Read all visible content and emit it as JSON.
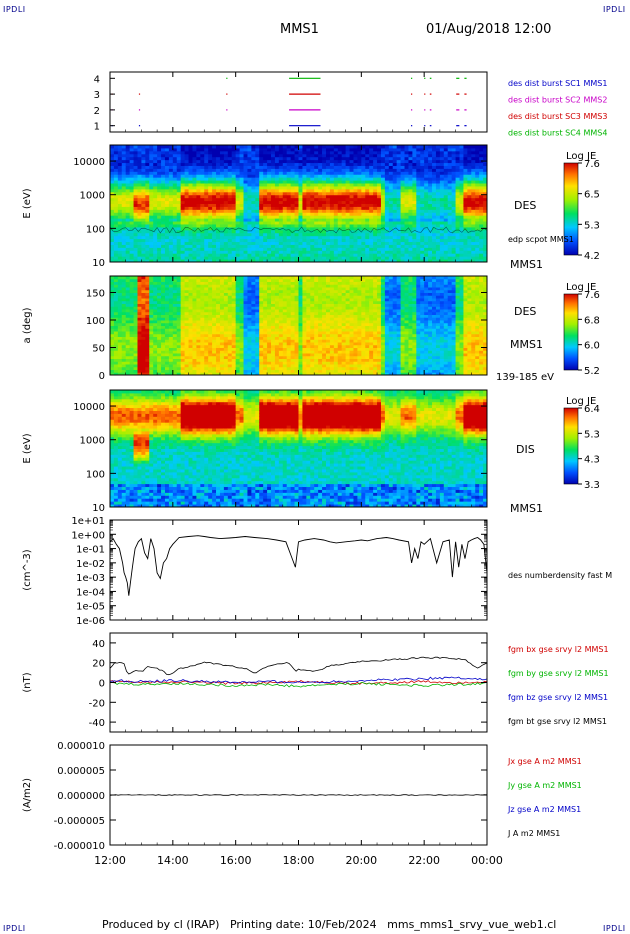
{
  "header": {
    "corner_tl": "IPDLI",
    "corner_tr": "IPDLI",
    "corner_bl": "IPDLI",
    "corner_br": "IPDLI",
    "spacecraft": "MMS1",
    "datetime": "01/Aug/2018 12:00"
  },
  "footer": {
    "text": "Produced by cl (IRAP)   Printing date: 10/Feb/2024   mms_mms1_srvy_vue_web1.cl"
  },
  "colors": {
    "blue": "#0000c8",
    "magenta": "#c800c8",
    "red": "#d00000",
    "green": "#00b400",
    "black": "#000000",
    "frame": "#000000"
  },
  "chart_data": [
    {
      "type": "line",
      "title": "",
      "ylabel": "",
      "yticks": [
        "1",
        "2",
        "3",
        "4"
      ],
      "ylim": [
        0.6,
        4.4
      ],
      "legend": [
        {
          "name": "des dist burst SC1 MMS1",
          "color": "#0000c8"
        },
        {
          "name": "des dist burst SC2 MMS2",
          "color": "#c800c8"
        },
        {
          "name": "des dist burst SC3 MMS3",
          "color": "#d00000"
        },
        {
          "name": "des dist burst SC4 MMS4",
          "color": "#00b400"
        }
      ],
      "series": [
        {
          "name": "des dist burst SC1 MMS1",
          "y": 1,
          "intervals": [
            [
              0.05,
              0.07
            ],
            [
              0.92,
              0.95
            ],
            [
              5.7,
              6.7
            ],
            [
              9.58,
              9.62
            ],
            [
              10.0,
              10.03
            ],
            [
              10.18,
              10.23
            ],
            [
              11.02,
              11.12
            ],
            [
              11.28,
              11.35
            ]
          ]
        },
        {
          "name": "des dist burst SC2 MMS2",
          "y": 2,
          "intervals": [
            [
              0.05,
              0.07
            ],
            [
              0.92,
              0.95
            ],
            [
              3.7,
              3.73
            ],
            [
              5.7,
              6.7
            ],
            [
              9.58,
              9.62
            ],
            [
              10.0,
              10.03
            ],
            [
              10.18,
              10.23
            ],
            [
              11.02,
              11.12
            ],
            [
              11.28,
              11.35
            ]
          ]
        },
        {
          "name": "des dist burst SC3 MMS3",
          "y": 3,
          "intervals": [
            [
              0.05,
              0.07
            ],
            [
              0.92,
              0.95
            ],
            [
              3.7,
              3.73
            ],
            [
              5.7,
              6.7
            ],
            [
              9.58,
              9.62
            ],
            [
              10.0,
              10.03
            ],
            [
              10.18,
              10.23
            ],
            [
              11.02,
              11.12
            ],
            [
              11.28,
              11.35
            ]
          ]
        },
        {
          "name": "des dist burst SC4 MMS4",
          "y": 4,
          "intervals": [
            [
              3.7,
              3.73
            ],
            [
              5.7,
              6.7
            ],
            [
              9.58,
              9.62
            ],
            [
              10.0,
              10.03
            ],
            [
              10.18,
              10.23
            ],
            [
              11.02,
              11.12
            ],
            [
              11.28,
              11.35
            ]
          ]
        }
      ]
    },
    {
      "type": "heatmap",
      "ylabel": "E (eV)",
      "yscale": "log",
      "ylim": [
        10,
        30000
      ],
      "yticks": [
        "10",
        "100",
        "1000",
        "10000"
      ],
      "colorbar": {
        "label": "Log JE",
        "ticks": [
          "7.6",
          "6.5",
          "5.3",
          "4.2"
        ],
        "min": 4.2,
        "max": 7.6
      },
      "right_labels": [
        "DES",
        "edp scpot MMS1",
        "MMS1"
      ]
    },
    {
      "type": "heatmap",
      "ylabel": "a (deg)",
      "ylim": [
        0,
        180
      ],
      "yticks": [
        "0",
        "50",
        "100",
        "150"
      ],
      "colorbar": {
        "label": "Log JE",
        "ticks": [
          "7.6",
          "6.8",
          "6.0",
          "5.2"
        ],
        "min": 5.2,
        "max": 7.6
      },
      "right_labels": [
        "DES",
        "MMS1",
        "139-185 eV"
      ]
    },
    {
      "type": "heatmap",
      "ylabel": "E (eV)",
      "yscale": "log",
      "ylim": [
        10,
        30000
      ],
      "yticks": [
        "10",
        "100",
        "1000",
        "10000"
      ],
      "colorbar": {
        "label": "Log JE",
        "ticks": [
          "6.4",
          "5.3",
          "4.3",
          "3.3"
        ],
        "min": 3.3,
        "max": 6.4
      },
      "right_labels": [
        "DIS",
        "MMS1"
      ]
    },
    {
      "type": "line",
      "ylabel": "(cm^-3)",
      "yscale": "log",
      "ylim": [
        1e-06,
        10
      ],
      "yticks": [
        "1e-06",
        "1e-05",
        "1e-04",
        "1e-03",
        "1e-02",
        "1e-01",
        "1e+00",
        "1e+01"
      ],
      "legend": [
        {
          "name": "des numberdensity fast M",
          "color": "#000000"
        }
      ],
      "series": [
        {
          "name": "des numberdensity fast M",
          "x": [
            0.0,
            0.1,
            0.2,
            0.3,
            0.4,
            0.45,
            0.5,
            0.55,
            0.6,
            0.65,
            0.7,
            0.75,
            0.8,
            0.9,
            1.0,
            1.1,
            1.2,
            1.3,
            1.4,
            1.5,
            1.6,
            1.7,
            1.8,
            1.9,
            2.0,
            2.2,
            2.5,
            2.8,
            3.0,
            3.2,
            3.5,
            3.8,
            4.0,
            4.3,
            4.6,
            5.0,
            5.3,
            5.6,
            5.8,
            5.9,
            6.0,
            6.2,
            6.5,
            6.8,
            7.0,
            7.2,
            7.5,
            7.8,
            8.0,
            8.2,
            8.5,
            8.8,
            9.0,
            9.2,
            9.5,
            9.6,
            9.7,
            9.8,
            9.9,
            10.0,
            10.2,
            10.4,
            10.6,
            10.8,
            10.9,
            11.0,
            11.1,
            11.2,
            11.3,
            11.4,
            11.5,
            11.6,
            11.7,
            11.8,
            11.9,
            12.0
          ],
          "y": [
            0.3,
            0.5,
            0.2,
            0.1,
            0.01,
            0.002,
            0.001,
            0.0004,
            5e-05,
            0.0004,
            0.003,
            0.02,
            0.1,
            0.3,
            0.5,
            0.05,
            0.02,
            0.5,
            0.1,
            0.002,
            0.0008,
            0.01,
            0.02,
            0.1,
            0.2,
            0.6,
            0.7,
            0.8,
            0.7,
            0.6,
            0.5,
            0.55,
            0.6,
            0.7,
            0.6,
            0.5,
            0.4,
            0.3,
            0.02,
            0.005,
            0.3,
            0.4,
            0.5,
            0.4,
            0.3,
            0.25,
            0.3,
            0.35,
            0.4,
            0.35,
            0.5,
            0.6,
            0.5,
            0.4,
            0.3,
            0.01,
            0.1,
            0.02,
            0.3,
            0.2,
            0.5,
            0.01,
            0.3,
            0.4,
            0.001,
            0.3,
            0.005,
            0.2,
            0.02,
            0.3,
            0.4,
            0.5,
            0.6,
            0.4,
            0.2,
            0.002
          ]
        }
      ]
    },
    {
      "type": "line",
      "ylabel": "(nT)",
      "ylim": [
        -50,
        50
      ],
      "yticks": [
        "-40",
        "-20",
        "0",
        "20",
        "40"
      ],
      "legend": [
        {
          "name": "fgm bx gse srvy l2 MMS1",
          "color": "#d00000"
        },
        {
          "name": "fgm by gse srvy l2 MMS1",
          "color": "#00b400"
        },
        {
          "name": "fgm bz gse srvy l2 MMS1",
          "color": "#0000c8"
        },
        {
          "name": "fgm bt gse srvy l2 MMS1",
          "color": "#000000"
        }
      ],
      "series": [
        {
          "name": "fgm bx gse srvy l2 MMS1",
          "x": [
            0,
            1,
            2,
            3,
            4,
            5,
            6,
            7,
            8,
            9,
            10,
            11,
            12
          ],
          "y": [
            1,
            0,
            1,
            0,
            -1,
            0,
            1,
            0,
            -1,
            0,
            1,
            0,
            1
          ]
        },
        {
          "name": "fgm by gse srvy l2 MMS1",
          "x": [
            0,
            1,
            2,
            3,
            4,
            5,
            6,
            7,
            8,
            9,
            10,
            11,
            12
          ],
          "y": [
            -1,
            -2,
            -1,
            -2,
            -3,
            -2,
            -4,
            -2,
            -1,
            -2,
            -3,
            -2,
            -1
          ]
        },
        {
          "name": "fgm bz gse srvy l2 MMS1",
          "x": [
            0,
            1,
            2,
            3,
            4,
            5,
            6,
            7,
            8,
            9,
            10,
            11,
            12
          ],
          "y": [
            2,
            1,
            2,
            1,
            0,
            1,
            0,
            1,
            2,
            3,
            4,
            5,
            3
          ]
        },
        {
          "name": "fgm bt gse srvy l2 MMS1",
          "x": [
            0.0,
            0.1,
            0.2,
            0.3,
            0.4,
            0.45,
            0.5,
            0.6,
            0.7,
            0.8,
            0.9,
            1.0,
            1.1,
            1.2,
            1.3,
            1.4,
            1.5,
            1.6,
            1.7,
            1.8,
            2.0,
            2.2,
            2.5,
            2.8,
            3.0,
            3.2,
            3.5,
            3.8,
            4.0,
            4.3,
            4.6,
            5.0,
            5.3,
            5.6,
            5.8,
            5.9,
            6.0,
            6.2,
            6.5,
            6.8,
            7.0,
            7.2,
            7.5,
            7.8,
            8.0,
            8.5,
            9.0,
            9.5,
            10.0,
            10.5,
            11.0,
            11.3,
            11.5,
            11.7,
            12.0
          ],
          "y": [
            14,
            19,
            20,
            20,
            20,
            19,
            12,
            8,
            10,
            12,
            12,
            11,
            13,
            16,
            15,
            15,
            14,
            13,
            11,
            8,
            9,
            14,
            16,
            18,
            20,
            20,
            18,
            17,
            16,
            14,
            9,
            16,
            18,
            20,
            17,
            10,
            13,
            12,
            11,
            14,
            17,
            18,
            19,
            20,
            21,
            22,
            23,
            24,
            25,
            25,
            24,
            23,
            18,
            14,
            20
          ]
        }
      ]
    },
    {
      "type": "line",
      "ylabel": "(A/m2)",
      "ylim": [
        -0.0001,
        0.0001
      ],
      "yticks": [
        "-0.000010",
        "-0.000005",
        "0.000000",
        "0.000005",
        "0.000010"
      ],
      "legend": [
        {
          "name": "Jx gse A m2 MMS1",
          "color": "#d00000"
        },
        {
          "name": "Jy gse A m2 MMS1",
          "color": "#00b400"
        },
        {
          "name": "Jz gse A m2 MMS1",
          "color": "#0000c8"
        },
        {
          "name": "J A m2 MMS1",
          "color": "#000000"
        }
      ],
      "series": [
        {
          "name": "J A m2 MMS1",
          "x": [
            0,
            12
          ],
          "y": [
            0,
            0
          ]
        }
      ]
    }
  ],
  "time_axis": {
    "ticks": [
      "12:00",
      "14:00",
      "16:00",
      "18:00",
      "20:00",
      "22:00",
      "00:00"
    ],
    "range_hours": [
      0,
      12
    ]
  }
}
